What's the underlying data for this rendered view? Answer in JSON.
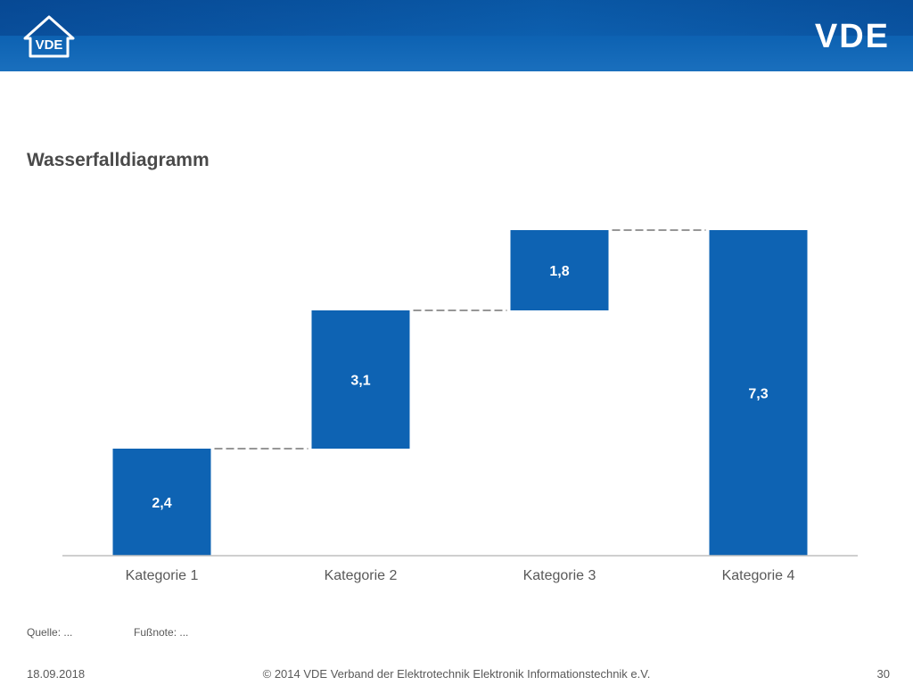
{
  "header": {
    "brand_text": "VDE",
    "seal_text": "VDE",
    "brand_color": "#0e63b3"
  },
  "title": "Wasserfalldiagramm",
  "chart_data": {
    "type": "bar",
    "subtype": "waterfall",
    "categories": [
      "Kategorie 1",
      "Kategorie 2",
      "Kategorie 3",
      "Kategorie 4"
    ],
    "values": [
      2.4,
      3.1,
      1.8,
      7.3
    ],
    "value_labels": [
      "2,4",
      "3,1",
      "1,8",
      "7,3"
    ],
    "bases": [
      0,
      2.4,
      5.5,
      0
    ],
    "last_is_total": true,
    "connectors": "dashed",
    "ylim": [
      0,
      7.3
    ],
    "bar_color": "#0e63b3",
    "grid": false,
    "title": "Wasserfalldiagramm"
  },
  "notes": {
    "source": "Quelle: ...",
    "footnote": "Fußnote: ..."
  },
  "footer": {
    "date": "18.09.2018",
    "copyright": "© 2014 VDE Verband der Elektrotechnik Elektronik Informationstechnik e.V.",
    "page": "30"
  }
}
